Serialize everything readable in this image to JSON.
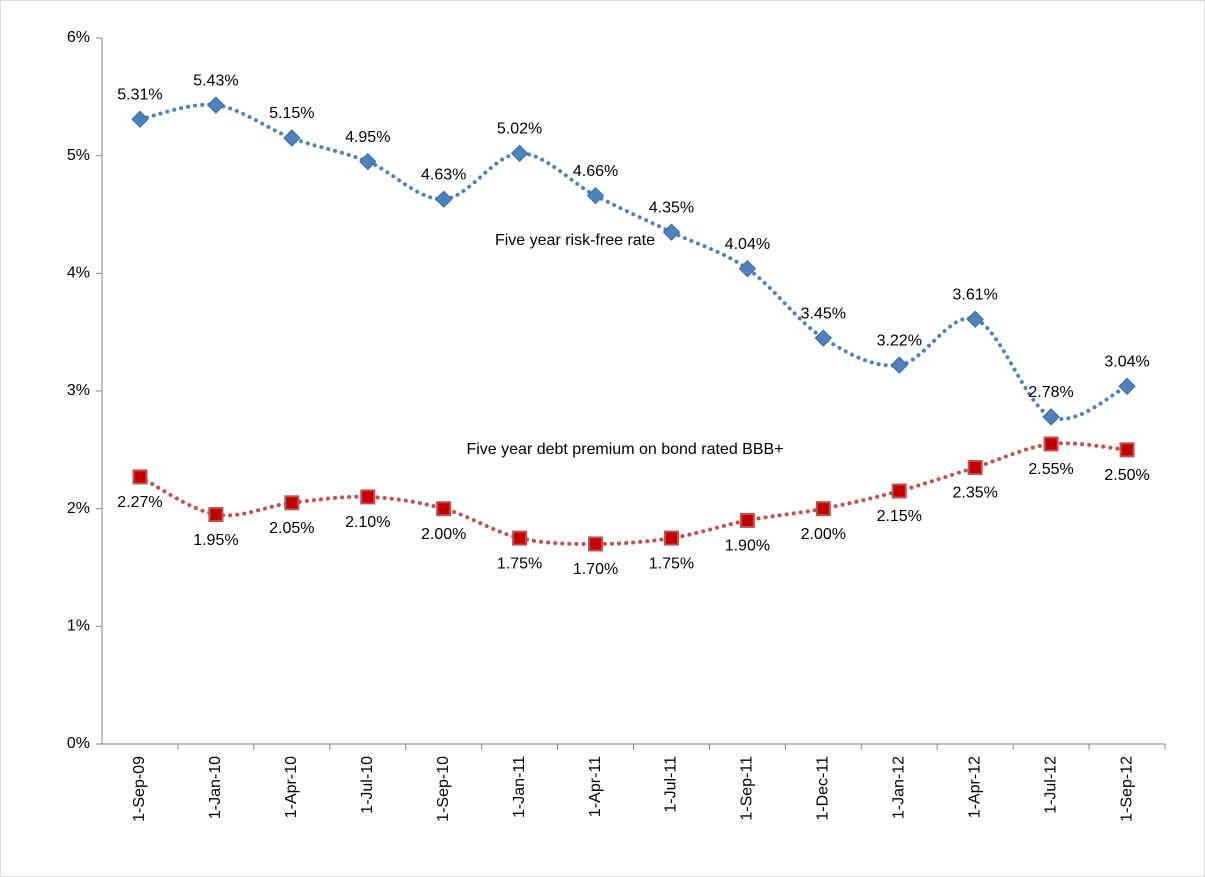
{
  "chart_data": {
    "type": "line",
    "categories": [
      "1-Sep-09",
      "1-Jan-10",
      "1-Apr-10",
      "1-Jul-10",
      "1-Sep-10",
      "1-Jan-11",
      "1-Apr-11",
      "1-Jul-11",
      "1-Sep-11",
      "1-Dec-11",
      "1-Jan-12",
      "1-Apr-12",
      "1-Jul-12",
      "1-Sep-12"
    ],
    "series": [
      {
        "name": "Five year risk-free rate",
        "color": "#4f81bd",
        "marker": "diamond",
        "values": [
          5.31,
          5.43,
          5.15,
          4.95,
          4.63,
          5.02,
          4.66,
          4.35,
          4.04,
          3.45,
          3.22,
          3.61,
          2.78,
          3.04
        ],
        "value_labels": [
          "5.31%",
          "5.43%",
          "5.15%",
          "4.95%",
          "4.63%",
          "5.02%",
          "4.66%",
          "4.35%",
          "4.04%",
          "3.45%",
          "3.22%",
          "3.61%",
          "2.78%",
          "3.04%"
        ]
      },
      {
        "name": "Five year debt premium on bond rated BBB+",
        "color": "#c0504d",
        "marker": "square",
        "values": [
          2.27,
          1.95,
          2.05,
          2.1,
          2.0,
          1.75,
          1.7,
          1.75,
          1.9,
          2.0,
          2.15,
          2.35,
          2.55,
          2.5
        ],
        "value_labels": [
          "2.27%",
          "1.95%",
          "2.05%",
          "2.10%",
          "2.00%",
          "1.75%",
          "1.70%",
          "1.75%",
          "1.90%",
          "2.00%",
          "2.15%",
          "2.35%",
          "2.55%",
          "2.50%"
        ]
      }
    ],
    "ylim": [
      0,
      6
    ],
    "yticks": [
      {
        "value": 0,
        "label": "0%"
      },
      {
        "value": 1,
        "label": "1%"
      },
      {
        "value": 2,
        "label": "2%"
      },
      {
        "value": 3,
        "label": "3%"
      },
      {
        "value": 4,
        "label": "4%"
      },
      {
        "value": 5,
        "label": "5%"
      },
      {
        "value": 6,
        "label": "6%"
      }
    ],
    "grid": false
  }
}
